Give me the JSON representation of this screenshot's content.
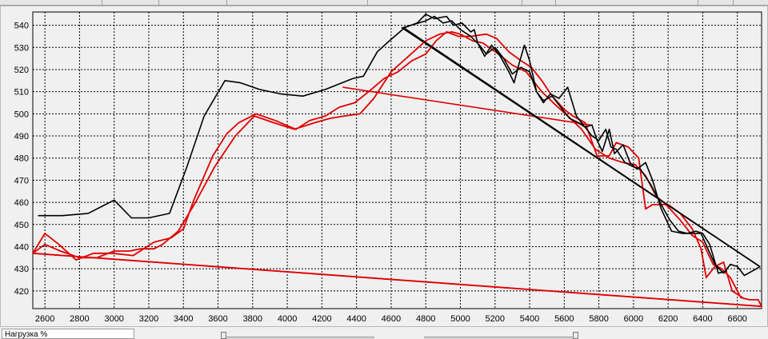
{
  "chart_data": {
    "type": "line",
    "title": "",
    "xlabel": "",
    "ylabel": "",
    "xlim": [
      2530,
      6740
    ],
    "ylim": [
      412,
      546
    ],
    "x_ticks": [
      2600,
      2800,
      3000,
      3200,
      3400,
      3600,
      3800,
      4000,
      4200,
      4400,
      4600,
      4800,
      5000,
      5200,
      5400,
      5600,
      5800,
      6000,
      6200,
      6400,
      6600
    ],
    "y_ticks": [
      420,
      430,
      440,
      450,
      460,
      470,
      480,
      490,
      500,
      510,
      520,
      530,
      540
    ],
    "grid": true,
    "series": [
      {
        "color": "#000000",
        "points": [
          [
            2560,
            454
          ],
          [
            2700,
            454
          ],
          [
            2850,
            455
          ],
          [
            3000,
            461
          ],
          [
            3100,
            453
          ],
          [
            3200,
            453
          ],
          [
            3320,
            455
          ],
          [
            3420,
            476
          ],
          [
            3520,
            499
          ],
          [
            3640,
            515
          ],
          [
            3730,
            514
          ],
          [
            3840,
            511
          ],
          [
            3960,
            509
          ],
          [
            4090,
            508
          ],
          [
            4220,
            511
          ],
          [
            4380,
            516
          ],
          [
            4440,
            517
          ],
          [
            4520,
            528
          ],
          [
            4590,
            533
          ],
          [
            4680,
            539
          ],
          [
            4750,
            541
          ],
          [
            4800,
            545
          ],
          [
            4850,
            543
          ],
          [
            4920,
            544
          ],
          [
            4960,
            540
          ],
          [
            5010,
            541
          ],
          [
            5060,
            537
          ],
          [
            5080,
            538
          ],
          [
            5100,
            532
          ],
          [
            5140,
            526
          ],
          [
            5180,
            531
          ],
          [
            5230,
            526
          ],
          [
            5280,
            519
          ],
          [
            5310,
            514
          ],
          [
            5340,
            523
          ],
          [
            5370,
            531
          ],
          [
            5400,
            524
          ],
          [
            5440,
            510
          ],
          [
            5480,
            505
          ],
          [
            5520,
            509
          ],
          [
            5570,
            507
          ],
          [
            5620,
            512
          ],
          [
            5670,
            499
          ],
          [
            5720,
            494
          ],
          [
            5760,
            495
          ],
          [
            5790,
            488
          ],
          [
            5820,
            483
          ],
          [
            5860,
            493
          ],
          [
            5890,
            482
          ],
          [
            5940,
            486
          ],
          [
            5980,
            478
          ],
          [
            6020,
            475
          ],
          [
            6070,
            478
          ],
          [
            6110,
            470
          ],
          [
            6160,
            457
          ],
          [
            6220,
            447
          ],
          [
            6280,
            446
          ],
          [
            6340,
            446
          ],
          [
            6390,
            446
          ],
          [
            6430,
            439
          ],
          [
            6470,
            432
          ],
          [
            6520,
            428
          ],
          [
            6560,
            432
          ],
          [
            6600,
            431
          ],
          [
            6640,
            427
          ],
          [
            6710,
            430
          ],
          [
            6730,
            431
          ],
          [
            4670,
            539
          ],
          [
            4800,
            542
          ],
          [
            4850,
            544
          ],
          [
            4900,
            541
          ],
          [
            4950,
            542
          ],
          [
            5000,
            538
          ],
          [
            5060,
            535
          ],
          [
            5110,
            531
          ],
          [
            5150,
            527
          ],
          [
            5200,
            530
          ],
          [
            5250,
            525
          ],
          [
            5300,
            518
          ],
          [
            5350,
            521
          ],
          [
            5400,
            519
          ],
          [
            5440,
            510
          ],
          [
            5480,
            506
          ],
          [
            5530,
            508
          ],
          [
            5580,
            503
          ],
          [
            5630,
            498
          ],
          [
            5680,
            496
          ],
          [
            5720,
            494
          ],
          [
            5760,
            490
          ],
          [
            5800,
            488
          ],
          [
            5840,
            493
          ],
          [
            5870,
            485
          ],
          [
            5900,
            484
          ],
          [
            5950,
            478
          ],
          [
            6000,
            476
          ],
          [
            6040,
            475
          ],
          [
            6100,
            468
          ],
          [
            6160,
            459
          ],
          [
            6210,
            452
          ],
          [
            6260,
            447
          ],
          [
            6310,
            446
          ],
          [
            6360,
            447
          ],
          [
            6400,
            446
          ],
          [
            6440,
            441
          ],
          [
            6490,
            428
          ],
          [
            6540,
            429
          ]
        ]
      },
      {
        "color": "#e00000",
        "points": [
          [
            2530,
            437
          ],
          [
            2600,
            441
          ],
          [
            2690,
            438
          ],
          [
            2800,
            435
          ],
          [
            2900,
            435
          ],
          [
            3000,
            438
          ],
          [
            3090,
            438
          ],
          [
            3150,
            439
          ],
          [
            3230,
            439
          ],
          [
            3280,
            441
          ],
          [
            3370,
            447
          ],
          [
            3470,
            460
          ],
          [
            3580,
            476
          ],
          [
            3700,
            490
          ],
          [
            3810,
            499
          ],
          [
            3920,
            496
          ],
          [
            4040,
            493
          ],
          [
            4160,
            496
          ],
          [
            4250,
            498
          ],
          [
            4330,
            499
          ],
          [
            4420,
            500
          ],
          [
            4500,
            507
          ],
          [
            4600,
            519
          ],
          [
            4700,
            526
          ],
          [
            4800,
            533
          ],
          [
            4880,
            536
          ],
          [
            4950,
            537
          ],
          [
            5000,
            536
          ],
          [
            5070,
            533
          ],
          [
            5130,
            532
          ],
          [
            5220,
            527
          ],
          [
            5300,
            522
          ],
          [
            5380,
            519
          ],
          [
            5470,
            510
          ],
          [
            5550,
            504
          ],
          [
            5620,
            499
          ],
          [
            5700,
            493
          ],
          [
            5780,
            484
          ],
          [
            5860,
            480
          ],
          [
            5940,
            478
          ],
          [
            6010,
            477
          ],
          [
            6070,
            472
          ],
          [
            6130,
            463
          ],
          [
            6200,
            458
          ],
          [
            6270,
            452
          ],
          [
            6340,
            445
          ],
          [
            6400,
            442
          ],
          [
            6460,
            432
          ],
          [
            6510,
            430
          ],
          [
            6560,
            426
          ],
          [
            6620,
            417
          ],
          [
            6670,
            416
          ],
          [
            6720,
            416
          ],
          [
            6740,
            413
          ],
          [
            2530,
            437
          ],
          [
            2600,
            446
          ],
          [
            2680,
            441
          ],
          [
            2780,
            434
          ],
          [
            2880,
            437
          ],
          [
            2990,
            437
          ],
          [
            3110,
            436
          ],
          [
            3230,
            442
          ],
          [
            3330,
            444
          ],
          [
            3400,
            448
          ],
          [
            3460,
            461
          ],
          [
            3570,
            481
          ],
          [
            3650,
            491
          ],
          [
            3720,
            496
          ],
          [
            3820,
            500
          ],
          [
            3930,
            497
          ],
          [
            4050,
            493
          ],
          [
            4130,
            497
          ],
          [
            4220,
            499
          ],
          [
            4300,
            503
          ],
          [
            4390,
            505
          ],
          [
            4470,
            510
          ],
          [
            4560,
            516
          ],
          [
            4640,
            519
          ],
          [
            4720,
            524
          ],
          [
            4800,
            527
          ],
          [
            4860,
            533
          ],
          [
            4920,
            537
          ],
          [
            4990,
            535
          ],
          [
            5060,
            535
          ],
          [
            5150,
            536
          ],
          [
            5210,
            534
          ],
          [
            5280,
            528
          ],
          [
            5350,
            524
          ],
          [
            5410,
            521
          ],
          [
            5470,
            515
          ],
          [
            5530,
            508
          ],
          [
            5600,
            502
          ],
          [
            5650,
            499
          ],
          [
            5720,
            496
          ],
          [
            5790,
            481
          ],
          [
            5860,
            481
          ],
          [
            5900,
            487
          ],
          [
            5970,
            485
          ],
          [
            6030,
            480
          ],
          [
            6070,
            457
          ],
          [
            6110,
            459
          ],
          [
            6200,
            459
          ],
          [
            6270,
            455
          ],
          [
            6340,
            448
          ],
          [
            6390,
            439
          ],
          [
            6420,
            426
          ],
          [
            6470,
            431
          ],
          [
            6520,
            433
          ],
          [
            6570,
            420
          ],
          [
            6630,
            417
          ]
        ]
      }
    ]
  },
  "chart_data_extra": {
    "trend_black": [
      [
        4660,
        539
      ],
      [
        6730,
        431
      ]
    ],
    "trend_red": [
      [
        4320,
        512
      ],
      [
        5750,
        495
      ]
    ],
    "red_close": [
      [
        2530,
        437
      ],
      [
        6740,
        413
      ]
    ]
  },
  "bottom_bar": {
    "status_text": "Нагрузка %"
  }
}
